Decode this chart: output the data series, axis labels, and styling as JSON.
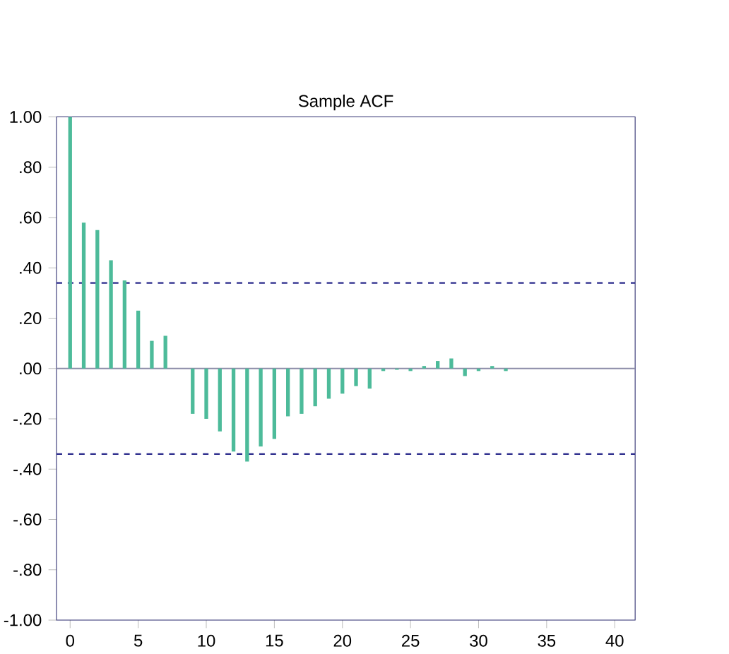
{
  "chart_data": {
    "type": "bar",
    "title": "Sample ACF",
    "x": [
      0,
      1,
      2,
      3,
      4,
      5,
      6,
      7,
      8,
      9,
      10,
      11,
      12,
      13,
      14,
      15,
      16,
      17,
      18,
      19,
      20,
      21,
      22,
      23,
      24,
      25,
      26,
      27,
      28,
      29,
      30,
      31,
      32,
      33,
      34,
      35,
      36,
      37,
      38,
      39,
      40
    ],
    "values": [
      1.0,
      0.58,
      0.55,
      0.43,
      0.35,
      0.23,
      0.11,
      0.13,
      0.0,
      -0.18,
      -0.2,
      -0.25,
      -0.33,
      -0.37,
      -0.31,
      -0.28,
      -0.19,
      -0.18,
      -0.15,
      -0.12,
      -0.1,
      -0.07,
      -0.08,
      -0.01,
      -0.005,
      -0.01,
      0.01,
      0.03,
      0.04,
      -0.03,
      -0.01,
      0.01,
      -0.01,
      0.0,
      0.0,
      0.0,
      0.0,
      0.0,
      0.0,
      0.0,
      0.0
    ],
    "color": "#4dbb9a",
    "xlim": [
      -1,
      41.5
    ],
    "ylim": [
      -1.0,
      1.0
    ],
    "xticks": [
      0,
      5,
      10,
      15,
      20,
      25,
      30,
      35,
      40
    ],
    "yticks": [
      {
        "value": -1.0,
        "label": "-1.00"
      },
      {
        "value": -0.8,
        "label": "-.80"
      },
      {
        "value": -0.6,
        "label": "-.60"
      },
      {
        "value": -0.4,
        "label": "-.40"
      },
      {
        "value": -0.2,
        "label": "-.20"
      },
      {
        "value": 0.0,
        "label": ".00"
      },
      {
        "value": 0.2,
        "label": ".20"
      },
      {
        "value": 0.4,
        "label": ".40"
      },
      {
        "value": 0.6,
        "label": ".60"
      },
      {
        "value": 0.8,
        "label": ".80"
      },
      {
        "value": 1.0,
        "label": "1.00"
      }
    ],
    "ref_lines": [
      {
        "axis": "y",
        "value": 0.34,
        "color": "#2b2b8c",
        "line_style": "dashed"
      },
      {
        "axis": "y",
        "value": -0.34,
        "color": "#2b2b8c",
        "line_style": "dashed"
      },
      {
        "axis": "y",
        "value": 0.0,
        "color": "#8c8ca8",
        "line_style": "solid"
      }
    ]
  }
}
